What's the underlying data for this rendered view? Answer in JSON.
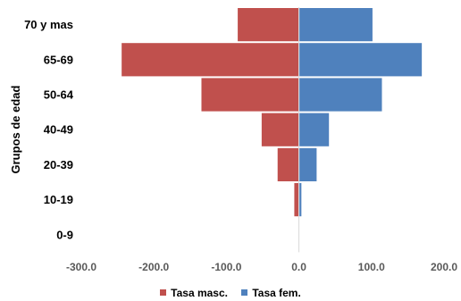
{
  "chart_data": {
    "type": "bar",
    "orientation": "horizontal",
    "stacked": true,
    "ylabel": "Grupos de edad",
    "xlabel": "",
    "title": "",
    "categories": [
      "0-9",
      "10-19",
      "20-39",
      "40-49",
      "50-64",
      "65-69",
      "70 y mas"
    ],
    "series": [
      {
        "name": "Tasa masc.",
        "color": "#C0504D",
        "values": [
          -1,
          -7,
          -30,
          -52,
          -135,
          -245,
          -85
        ]
      },
      {
        "name": "Tasa fem.",
        "color": "#4F81BD",
        "values": [
          1,
          4,
          25,
          42,
          115,
          170,
          102
        ]
      }
    ],
    "x_ticks": [
      "-300.0",
      "-200.0",
      "-100.0",
      "0.0",
      "100.0",
      "200.0"
    ],
    "xlim": [
      -300,
      200
    ],
    "grid": false,
    "legend_position": "bottom"
  }
}
